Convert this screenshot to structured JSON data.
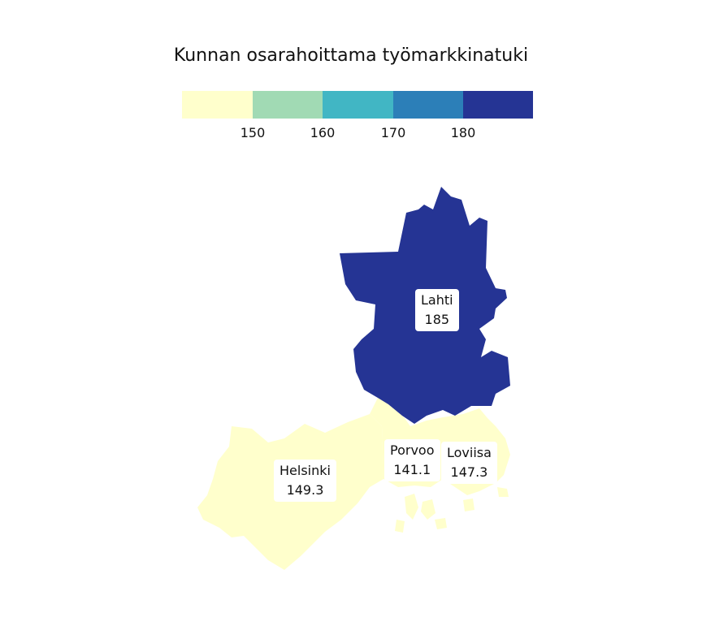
{
  "title": "Kunnan osarahoittama työmarkkinatuki",
  "legend": {
    "colors": [
      "#ffffcc",
      "#a1dab4",
      "#41b6c4",
      "#2c7fb8",
      "#253494"
    ],
    "ticks": [
      "150",
      "160",
      "170",
      "180"
    ]
  },
  "regions": [
    {
      "name": "Lahti",
      "value": "185",
      "color": "#253494"
    },
    {
      "name": "Helsinki",
      "value": "149.3",
      "color": "#ffffcc"
    },
    {
      "name": "Porvoo",
      "value": "141.1",
      "color": "#ffffcc"
    },
    {
      "name": "Loviisa",
      "value": "147.3",
      "color": "#ffffcc"
    }
  ]
}
